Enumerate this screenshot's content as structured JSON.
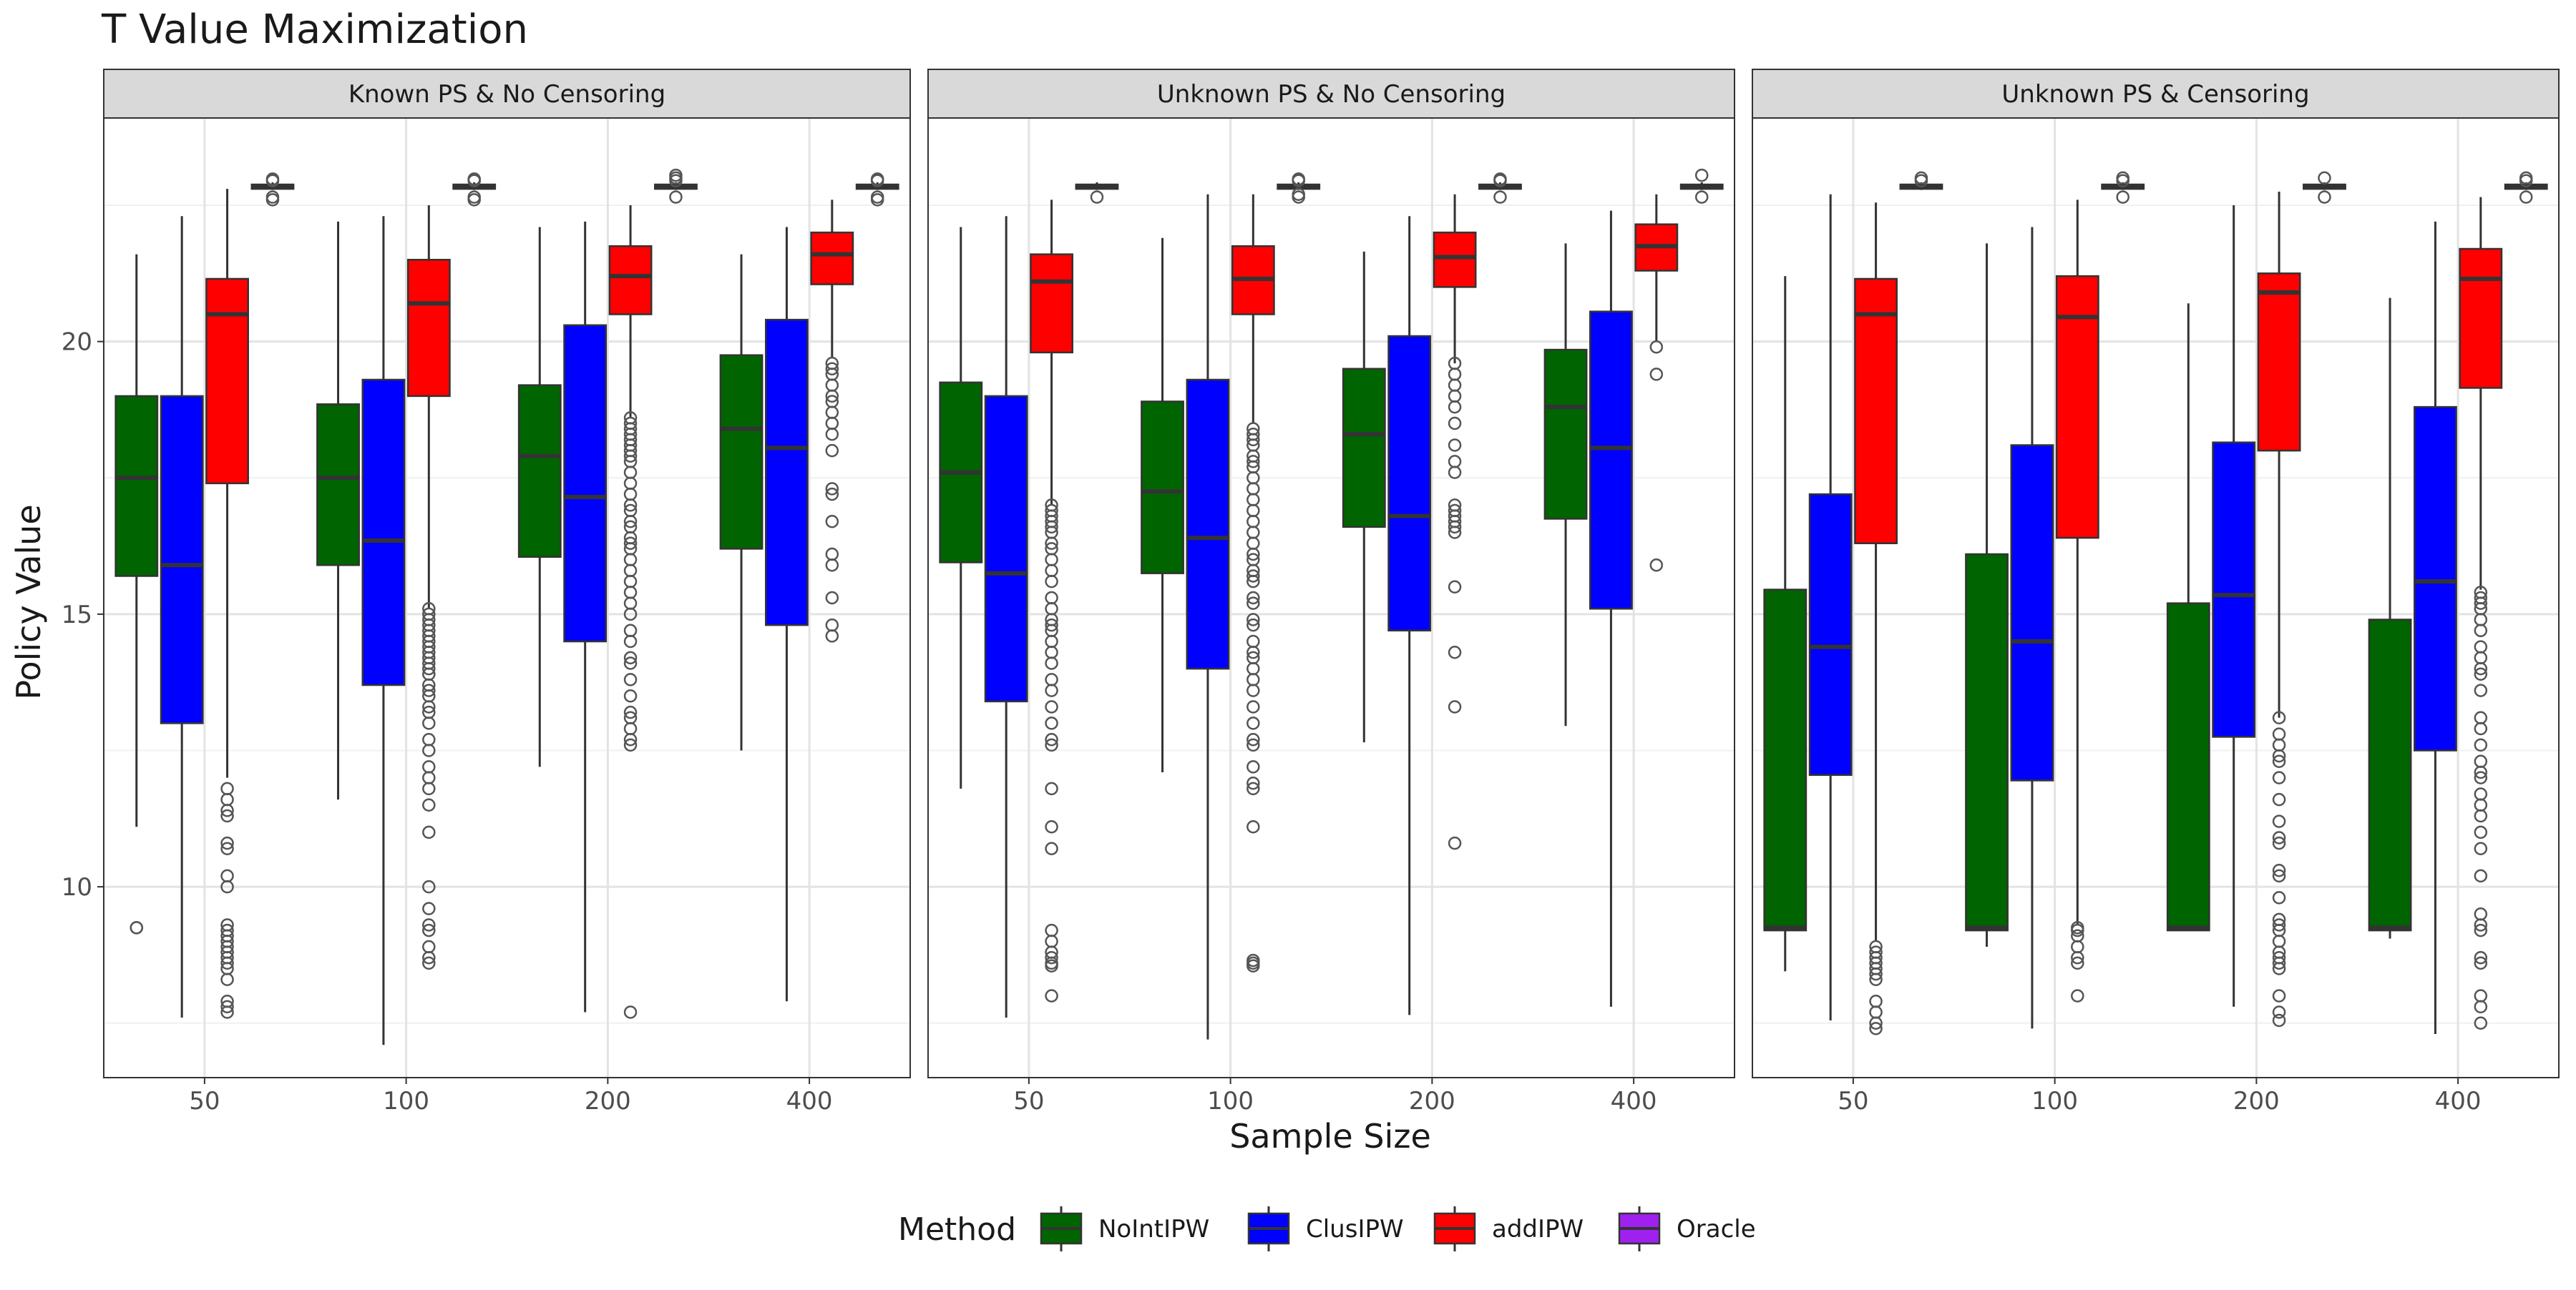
{
  "chart_data": {
    "type": "boxplot",
    "title": "T Value Maximization",
    "xlabel": "Sample Size",
    "ylabel": "Policy Value",
    "ylim": [
      6.5,
      24.1
    ],
    "yticks": [
      10,
      15,
      20
    ],
    "grid": true,
    "legend_position": "bottom",
    "legend_title": "Method",
    "categories": [
      "50",
      "100",
      "200",
      "400"
    ],
    "methods": [
      {
        "name": "NoIntIPW",
        "color": "#006400"
      },
      {
        "name": "ClusIPW",
        "color": "#0000ff"
      },
      {
        "name": "addIPW",
        "color": "#ff0000"
      },
      {
        "name": "Oracle",
        "color": "#a020f0"
      }
    ],
    "panels": [
      {
        "title": "Known PS & No Censoring",
        "groups": [
          [
            {
              "wlo": 11.1,
              "q1": 15.7,
              "med": 17.5,
              "q3": 19.0,
              "whi": 21.6,
              "out": [
                9.25,
                9.25
              ]
            },
            {
              "wlo": 7.6,
              "q1": 13.0,
              "med": 15.9,
              "q3": 19.0,
              "whi": 22.3,
              "out": []
            },
            {
              "wlo": 12.0,
              "q1": 17.4,
              "med": 20.5,
              "q3": 21.15,
              "whi": 22.8,
              "out": [
                11.8,
                11.6,
                11.4,
                11.3,
                10.8,
                10.7,
                10.2,
                10.0,
                9.3,
                9.2,
                9.1,
                9.0,
                8.9,
                8.8,
                8.7,
                8.6,
                8.5,
                8.3,
                7.9,
                7.8,
                7.7
              ]
            },
            {
              "wlo": 22.78,
              "q1": 22.8,
              "med": 22.84,
              "q3": 22.88,
              "whi": 22.92,
              "out": [
                22.6,
                22.65,
                22.95,
                22.98
              ]
            }
          ],
          [
            {
              "wlo": 11.6,
              "q1": 15.9,
              "med": 17.5,
              "q3": 18.85,
              "whi": 22.2,
              "out": []
            },
            {
              "wlo": 7.1,
              "q1": 13.7,
              "med": 16.35,
              "q3": 19.3,
              "whi": 22.3,
              "out": []
            },
            {
              "wlo": 15.1,
              "q1": 19.0,
              "med": 20.7,
              "q3": 21.5,
              "whi": 22.5,
              "out": [
                15.1,
                15.0,
                14.9,
                14.8,
                14.7,
                14.6,
                14.5,
                14.4,
                14.3,
                14.2,
                14.1,
                14.0,
                13.9,
                13.7,
                13.6,
                13.5,
                13.3,
                13.2,
                13.0,
                12.7,
                12.5,
                12.2,
                12.0,
                11.8,
                11.5,
                11.0,
                10.0,
                9.6,
                9.3,
                9.2,
                8.9,
                8.7,
                8.6
              ]
            },
            {
              "wlo": 22.78,
              "q1": 22.8,
              "med": 22.84,
              "q3": 22.88,
              "whi": 22.92,
              "out": [
                22.6,
                22.65,
                22.95,
                22.98
              ]
            }
          ],
          [
            {
              "wlo": 12.2,
              "q1": 16.05,
              "med": 17.9,
              "q3": 19.2,
              "whi": 22.1,
              "out": []
            },
            {
              "wlo": 7.7,
              "q1": 14.5,
              "med": 17.15,
              "q3": 20.3,
              "whi": 22.2,
              "out": []
            },
            {
              "wlo": 18.6,
              "q1": 20.5,
              "med": 21.2,
              "q3": 21.75,
              "whi": 22.5,
              "out": [
                18.6,
                18.5,
                18.4,
                18.3,
                18.2,
                18.1,
                18.0,
                17.9,
                17.8,
                17.6,
                17.4,
                17.2,
                17.0,
                16.9,
                16.7,
                16.6,
                16.4,
                16.3,
                16.2,
                16.0,
                15.8,
                15.6,
                15.4,
                15.2,
                15.0,
                14.7,
                14.5,
                14.2,
                14.1,
                13.8,
                13.5,
                13.2,
                13.1,
                12.9,
                12.7,
                12.6,
                7.7
              ]
            },
            {
              "wlo": 22.78,
              "q1": 22.8,
              "med": 22.84,
              "q3": 22.88,
              "whi": 22.92,
              "out": [
                22.65,
                22.95,
                23.0,
                23.05
              ]
            }
          ],
          [
            {
              "wlo": 12.5,
              "q1": 16.2,
              "med": 18.4,
              "q3": 19.75,
              "whi": 21.6,
              "out": []
            },
            {
              "wlo": 7.9,
              "q1": 14.8,
              "med": 18.05,
              "q3": 20.4,
              "whi": 22.1,
              "out": []
            },
            {
              "wlo": 19.7,
              "q1": 21.05,
              "med": 21.6,
              "q3": 22.0,
              "whi": 22.6,
              "out": [
                19.6,
                19.5,
                19.4,
                19.2,
                19.0,
                18.9,
                18.7,
                18.5,
                18.3,
                18.0,
                17.3,
                17.2,
                16.7,
                16.1,
                15.9,
                15.3,
                14.8,
                14.6
              ]
            },
            {
              "wlo": 22.78,
              "q1": 22.8,
              "med": 22.84,
              "q3": 22.88,
              "whi": 22.92,
              "out": [
                22.6,
                22.65,
                22.95,
                22.98
              ]
            }
          ]
        ]
      },
      {
        "title": "Unknown PS & No Censoring",
        "groups": [
          [
            {
              "wlo": 11.8,
              "q1": 15.95,
              "med": 17.6,
              "q3": 19.25,
              "whi": 22.1,
              "out": []
            },
            {
              "wlo": 7.6,
              "q1": 13.4,
              "med": 15.75,
              "q3": 19.0,
              "whi": 22.3,
              "out": []
            },
            {
              "wlo": 17.0,
              "q1": 19.8,
              "med": 21.1,
              "q3": 21.6,
              "whi": 22.6,
              "out": [
                17.0,
                16.9,
                16.8,
                16.7,
                16.6,
                16.5,
                16.3,
                16.2,
                16.0,
                15.8,
                15.6,
                15.3,
                15.1,
                14.9,
                14.8,
                14.7,
                14.5,
                14.3,
                14.1,
                13.8,
                13.6,
                13.3,
                13.0,
                12.7,
                12.6,
                11.8,
                11.1,
                10.7,
                9.2,
                9.0,
                8.8,
                8.7,
                8.6,
                8.55,
                8.0
              ]
            },
            {
              "wlo": 22.78,
              "q1": 22.8,
              "med": 22.84,
              "q3": 22.88,
              "whi": 22.92,
              "out": [
                22.65
              ]
            }
          ],
          [
            {
              "wlo": 12.1,
              "q1": 15.75,
              "med": 17.25,
              "q3": 18.9,
              "whi": 21.9,
              "out": []
            },
            {
              "wlo": 7.2,
              "q1": 14.0,
              "med": 16.4,
              "q3": 19.3,
              "whi": 22.7,
              "out": []
            },
            {
              "wlo": 18.5,
              "q1": 20.5,
              "med": 21.15,
              "q3": 21.75,
              "whi": 22.7,
              "out": [
                18.4,
                18.3,
                18.2,
                18.1,
                17.9,
                17.8,
                17.7,
                17.5,
                17.3,
                17.1,
                16.9,
                16.7,
                16.5,
                16.3,
                16.1,
                16.0,
                15.8,
                15.7,
                15.6,
                15.3,
                15.2,
                14.9,
                14.8,
                14.5,
                14.3,
                14.2,
                14.0,
                13.8,
                13.6,
                13.3,
                13.0,
                12.7,
                12.6,
                12.2,
                11.9,
                11.8,
                11.1,
                8.65,
                8.6,
                8.55
              ]
            },
            {
              "wlo": 22.78,
              "q1": 22.8,
              "med": 22.84,
              "q3": 22.88,
              "whi": 22.92,
              "out": [
                22.65,
                22.7,
                22.95,
                22.98
              ]
            }
          ],
          [
            {
              "wlo": 12.65,
              "q1": 16.6,
              "med": 18.3,
              "q3": 19.5,
              "whi": 21.65,
              "out": []
            },
            {
              "wlo": 7.65,
              "q1": 14.7,
              "med": 16.8,
              "q3": 20.1,
              "whi": 22.3,
              "out": []
            },
            {
              "wlo": 19.6,
              "q1": 21.0,
              "med": 21.55,
              "q3": 22.0,
              "whi": 22.7,
              "out": [
                19.6,
                19.4,
                19.2,
                19.0,
                18.8,
                18.5,
                18.1,
                17.8,
                17.6,
                17.0,
                16.9,
                16.8,
                16.7,
                16.6,
                16.5,
                15.5,
                14.3,
                13.3,
                10.8
              ]
            },
            {
              "wlo": 22.78,
              "q1": 22.8,
              "med": 22.84,
              "q3": 22.88,
              "whi": 22.92,
              "out": [
                22.65,
                22.95,
                22.98
              ]
            }
          ],
          [
            {
              "wlo": 12.95,
              "q1": 16.75,
              "med": 18.8,
              "q3": 19.85,
              "whi": 21.8,
              "out": []
            },
            {
              "wlo": 7.8,
              "q1": 15.1,
              "med": 18.05,
              "q3": 20.55,
              "whi": 22.4,
              "out": []
            },
            {
              "wlo": 20.0,
              "q1": 21.3,
              "med": 21.75,
              "q3": 22.15,
              "whi": 22.7,
              "out": [
                19.9,
                19.4,
                15.9
              ]
            },
            {
              "wlo": 22.78,
              "q1": 22.8,
              "med": 22.84,
              "q3": 22.88,
              "whi": 22.92,
              "out": [
                22.65,
                23.05
              ]
            }
          ]
        ]
      },
      {
        "title": "Unknown PS & Censoring",
        "groups": [
          [
            {
              "wlo": 8.45,
              "q1": 9.2,
              "med": 9.25,
              "q3": 15.45,
              "whi": 21.2,
              "out": []
            },
            {
              "wlo": 7.55,
              "q1": 12.05,
              "med": 14.4,
              "q3": 17.2,
              "whi": 22.7,
              "out": []
            },
            {
              "wlo": 9.0,
              "q1": 16.3,
              "med": 20.5,
              "q3": 21.15,
              "whi": 22.55,
              "out": [
                8.9,
                8.8,
                8.7,
                8.6,
                8.5,
                8.4,
                8.3,
                7.9,
                7.7,
                7.5,
                7.4
              ]
            },
            {
              "wlo": 22.78,
              "q1": 22.8,
              "med": 22.84,
              "q3": 22.88,
              "whi": 22.92,
              "out": [
                22.95,
                23.0
              ]
            }
          ],
          [
            {
              "wlo": 8.9,
              "q1": 9.2,
              "med": 9.25,
              "q3": 16.1,
              "whi": 21.8,
              "out": []
            },
            {
              "wlo": 7.4,
              "q1": 11.95,
              "med": 14.5,
              "q3": 18.1,
              "whi": 22.1,
              "out": []
            },
            {
              "wlo": 9.3,
              "q1": 16.4,
              "med": 20.45,
              "q3": 21.2,
              "whi": 22.6,
              "out": [
                9.25,
                9.2,
                9.1,
                8.9,
                8.7,
                8.6,
                8.0
              ]
            },
            {
              "wlo": 22.78,
              "q1": 22.8,
              "med": 22.84,
              "q3": 22.88,
              "whi": 22.92,
              "out": [
                22.65,
                22.95,
                23.0
              ]
            }
          ],
          [
            {
              "wlo": 9.2,
              "q1": 9.2,
              "med": 9.25,
              "q3": 15.2,
              "whi": 20.7,
              "out": []
            },
            {
              "wlo": 7.8,
              "q1": 12.75,
              "med": 15.35,
              "q3": 18.15,
              "whi": 22.5,
              "out": []
            },
            {
              "wlo": 13.1,
              "q1": 18.0,
              "med": 20.9,
              "q3": 21.25,
              "whi": 22.75,
              "out": [
                13.1,
                12.8,
                12.6,
                12.4,
                12.3,
                12.0,
                11.6,
                11.2,
                10.9,
                10.8,
                10.3,
                10.2,
                9.8,
                9.4,
                9.3,
                9.2,
                9.0,
                8.8,
                8.7,
                8.6,
                8.5,
                8.0,
                7.7,
                7.55
              ]
            },
            {
              "wlo": 22.78,
              "q1": 22.8,
              "med": 22.84,
              "q3": 22.88,
              "whi": 22.92,
              "out": [
                22.65,
                23.0
              ]
            }
          ],
          [
            {
              "wlo": 9.05,
              "q1": 9.2,
              "med": 9.25,
              "q3": 14.9,
              "whi": 20.8,
              "out": []
            },
            {
              "wlo": 7.3,
              "q1": 12.5,
              "med": 15.6,
              "q3": 18.8,
              "whi": 22.2,
              "out": []
            },
            {
              "wlo": 15.45,
              "q1": 19.15,
              "med": 21.15,
              "q3": 21.7,
              "whi": 22.65,
              "out": [
                15.4,
                15.3,
                15.2,
                15.1,
                14.9,
                14.7,
                14.4,
                14.2,
                14.0,
                13.9,
                13.6,
                13.1,
                12.9,
                12.6,
                12.3,
                12.1,
                12.0,
                11.7,
                11.5,
                11.3,
                11.0,
                10.7,
                10.2,
                9.5,
                9.3,
                9.2,
                8.7,
                8.6,
                8.0,
                7.8,
                7.5
              ]
            },
            {
              "wlo": 22.78,
              "q1": 22.8,
              "med": 22.84,
              "q3": 22.88,
              "whi": 22.92,
              "out": [
                22.65,
                22.95,
                23.0
              ]
            }
          ]
        ]
      }
    ]
  }
}
